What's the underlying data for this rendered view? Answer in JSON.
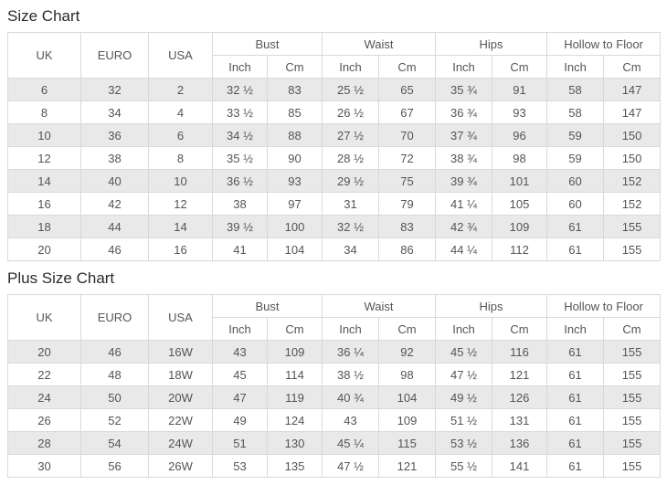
{
  "colors": {
    "stripe": "#e9e9e9",
    "border": "#d9d9d9",
    "text": "#555555",
    "title_text": "#2b2b2b",
    "row_bg": "#ffffff"
  },
  "tables": [
    {
      "title": "Size Chart",
      "simple_headers": [
        "UK",
        "EURO",
        "USA"
      ],
      "group_headers": [
        {
          "label": "Bust",
          "sub": [
            "Inch",
            "Cm"
          ]
        },
        {
          "label": "Waist",
          "sub": [
            "Inch",
            "Cm"
          ]
        },
        {
          "label": "Hips",
          "sub": [
            "Inch",
            "Cm"
          ]
        },
        {
          "label": "Hollow to Floor",
          "sub": [
            "Inch",
            "Cm"
          ]
        }
      ],
      "rows": [
        [
          "6",
          "32",
          "2",
          "32 ½",
          "83",
          "25 ½",
          "65",
          "35 ¾",
          "91",
          "58",
          "147"
        ],
        [
          "8",
          "34",
          "4",
          "33 ½",
          "85",
          "26 ½",
          "67",
          "36 ¾",
          "93",
          "58",
          "147"
        ],
        [
          "10",
          "36",
          "6",
          "34 ½",
          "88",
          "27 ½",
          "70",
          "37 ¾",
          "96",
          "59",
          "150"
        ],
        [
          "12",
          "38",
          "8",
          "35 ½",
          "90",
          "28 ½",
          "72",
          "38 ¾",
          "98",
          "59",
          "150"
        ],
        [
          "14",
          "40",
          "10",
          "36 ½",
          "93",
          "29 ½",
          "75",
          "39 ¾",
          "101",
          "60",
          "152"
        ],
        [
          "16",
          "42",
          "12",
          "38",
          "97",
          "31",
          "79",
          "41 ¼",
          "105",
          "60",
          "152"
        ],
        [
          "18",
          "44",
          "14",
          "39 ½",
          "100",
          "32 ½",
          "83",
          "42 ¾",
          "109",
          "61",
          "155"
        ],
        [
          "20",
          "46",
          "16",
          "41",
          "104",
          "34",
          "86",
          "44 ¼",
          "112",
          "61",
          "155"
        ]
      ]
    },
    {
      "title": "Plus Size Chart",
      "simple_headers": [
        "UK",
        "EURO",
        "USA"
      ],
      "group_headers": [
        {
          "label": "Bust",
          "sub": [
            "Inch",
            "Cm"
          ]
        },
        {
          "label": "Waist",
          "sub": [
            "Inch",
            "Cm"
          ]
        },
        {
          "label": "Hips",
          "sub": [
            "Inch",
            "Cm"
          ]
        },
        {
          "label": "Hollow to Floor",
          "sub": [
            "Inch",
            "Cm"
          ]
        }
      ],
      "rows": [
        [
          "20",
          "46",
          "16W",
          "43",
          "109",
          "36 ¼",
          "92",
          "45 ½",
          "116",
          "61",
          "155"
        ],
        [
          "22",
          "48",
          "18W",
          "45",
          "114",
          "38 ½",
          "98",
          "47 ½",
          "121",
          "61",
          "155"
        ],
        [
          "24",
          "50",
          "20W",
          "47",
          "119",
          "40 ¾",
          "104",
          "49 ½",
          "126",
          "61",
          "155"
        ],
        [
          "26",
          "52",
          "22W",
          "49",
          "124",
          "43",
          "109",
          "51 ½",
          "131",
          "61",
          "155"
        ],
        [
          "28",
          "54",
          "24W",
          "51",
          "130",
          "45 ¼",
          "115",
          "53 ½",
          "136",
          "61",
          "155"
        ],
        [
          "30",
          "56",
          "26W",
          "53",
          "135",
          "47 ½",
          "121",
          "55 ½",
          "141",
          "61",
          "155"
        ]
      ]
    }
  ]
}
